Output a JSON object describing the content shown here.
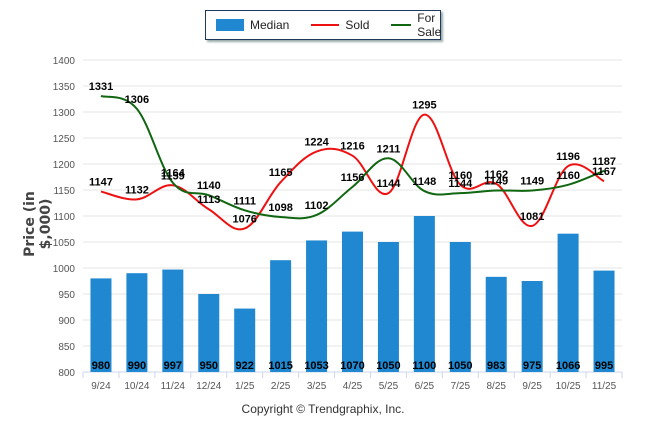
{
  "chart_data": {
    "type": "bar",
    "title": "",
    "xlabel": "",
    "ylabel": "Price (in $,000)",
    "ylim": [
      800,
      1400
    ],
    "yticks": [
      800,
      850,
      900,
      950,
      1000,
      1050,
      1100,
      1150,
      1200,
      1250,
      1300,
      1350,
      1400
    ],
    "grid": true,
    "legend_position": "top-center",
    "categories": [
      "9/24",
      "10/24",
      "11/24",
      "12/24",
      "1/25",
      "2/25",
      "3/25",
      "4/25",
      "5/25",
      "6/25",
      "7/25",
      "8/25",
      "9/25",
      "10/25",
      "11/25"
    ],
    "series": [
      {
        "name": "Median",
        "kind": "bar",
        "color": "#1f88d0",
        "values": [
          980,
          990,
          997,
          950,
          922,
          1015,
          1053,
          1070,
          1050,
          1100,
          1050,
          983,
          975,
          1066,
          995
        ]
      },
      {
        "name": "Sold",
        "kind": "line",
        "color": "#ee1111",
        "values": [
          1147,
          1132,
          1159,
          1113,
          1076,
          1165,
          1224,
          1216,
          1144,
          1295,
          1160,
          1162,
          1081,
          1196,
          1167
        ]
      },
      {
        "name": "For Sale",
        "kind": "line",
        "color": "#116611",
        "values": [
          1331,
          1306,
          1164,
          1140,
          1111,
          1098,
          1102,
          1156,
          1211,
          1148,
          1144,
          1149,
          1149,
          1160,
          1187
        ]
      }
    ]
  },
  "legend": {
    "items": [
      {
        "label": "Median",
        "color": "#1f88d0"
      },
      {
        "label": "Sold",
        "color": "#ee1111"
      },
      {
        "label": "For Sale",
        "color": "#116611"
      }
    ]
  },
  "footer": {
    "copyright": "Copyright © Trendgraphix, Inc."
  }
}
